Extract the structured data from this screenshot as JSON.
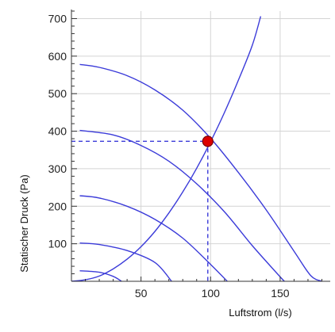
{
  "chart_data": {
    "type": "line",
    "title": "",
    "xlabel": "Luftstrom (l/s)",
    "ylabel": "Statischer Druck (Pa)",
    "xlim": [
      0,
      186
    ],
    "ylim": [
      0,
      720
    ],
    "x_ticks": [
      50,
      100,
      150
    ],
    "y_ticks": [
      100,
      200,
      300,
      400,
      500,
      600,
      700
    ],
    "grid": true,
    "colors": {
      "curves": "#3b3bd9",
      "marker": "#dd0000",
      "grid": "#d4d4d4",
      "axis": "#333333"
    },
    "fan_curves": [
      {
        "x": [
          6,
          20,
          40,
          60,
          80,
          100,
          120,
          140,
          160,
          172,
          180
        ],
        "y": [
          578,
          570,
          548,
          510,
          456,
          381,
          290,
          190,
          80,
          15,
          0
        ]
      },
      {
        "x": [
          6,
          30,
          50,
          70,
          90,
          110,
          130,
          148,
          153
        ],
        "y": [
          402,
          390,
          362,
          320,
          260,
          185,
          95,
          20,
          0
        ]
      },
      {
        "x": [
          6,
          20,
          40,
          60,
          80,
          100,
          112
        ],
        "y": [
          228,
          222,
          200,
          165,
          115,
          45,
          0
        ]
      },
      {
        "x": [
          6,
          20,
          40,
          60,
          72
        ],
        "y": [
          102,
          98,
          82,
          50,
          0
        ]
      },
      {
        "x": [
          6,
          20,
          30,
          36
        ],
        "y": [
          28,
          24,
          13,
          0
        ]
      }
    ],
    "system_curve": {
      "x": [
        0,
        10,
        20,
        30,
        40,
        50,
        60,
        70,
        80,
        90,
        100,
        110,
        120,
        130,
        136
      ],
      "y": [
        0,
        4,
        14,
        33,
        59,
        92,
        133,
        182,
        238,
        301,
        372,
        450,
        536,
        629,
        706
      ]
    },
    "operating_point": {
      "x": 98,
      "y": 373
    }
  }
}
